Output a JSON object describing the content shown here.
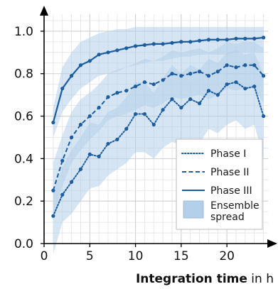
{
  "chart_data": {
    "type": "line",
    "title": "",
    "xlabel": {
      "bold": "Integration time",
      "rest": " in h"
    },
    "ylabel": "",
    "xlim": [
      0,
      24.5
    ],
    "ylim": [
      0,
      1.08
    ],
    "x_ticks": [
      0,
      5,
      10,
      15,
      20
    ],
    "y_ticks": [
      0.0,
      0.2,
      0.4,
      0.6,
      0.8,
      1.0
    ],
    "x_tick_labels": [
      "0",
      "5",
      "10",
      "15",
      "20"
    ],
    "y_tick_labels": [
      "0.0",
      "0.2",
      "0.4",
      "0.6",
      "0.8",
      "1.0"
    ],
    "grid": true,
    "legend_position": "bottom-right",
    "band_color": "#b4cfe9",
    "line_color": "#1b5d9e",
    "x": [
      1,
      2,
      3,
      4,
      5,
      6,
      7,
      8,
      9,
      10,
      11,
      12,
      13,
      14,
      15,
      16,
      17,
      18,
      19,
      20,
      21,
      22,
      23,
      24
    ],
    "series": [
      {
        "name": "Phase I",
        "style": "dotted",
        "values": [
          0.13,
          0.23,
          0.29,
          0.35,
          0.42,
          0.41,
          0.47,
          0.49,
          0.54,
          0.61,
          0.61,
          0.56,
          0.63,
          0.68,
          0.64,
          0.68,
          0.66,
          0.72,
          0.7,
          0.75,
          0.76,
          0.73,
          0.74,
          0.6
        ]
      },
      {
        "name": "Phase II",
        "style": "dashed",
        "values": [
          0.25,
          0.39,
          0.5,
          0.56,
          0.6,
          0.64,
          0.69,
          0.71,
          0.72,
          0.74,
          0.76,
          0.75,
          0.77,
          0.8,
          0.79,
          0.8,
          0.81,
          0.79,
          0.81,
          0.84,
          0.83,
          0.84,
          0.84,
          0.79
        ]
      },
      {
        "name": "Phase III",
        "style": "solid",
        "values": [
          0.57,
          0.73,
          0.79,
          0.84,
          0.86,
          0.89,
          0.9,
          0.91,
          0.92,
          0.93,
          0.935,
          0.94,
          0.94,
          0.945,
          0.95,
          0.95,
          0.955,
          0.96,
          0.96,
          0.96,
          0.965,
          0.965,
          0.965,
          0.97
        ]
      }
    ],
    "bands": [
      {
        "series": "Phase I",
        "lower": [
          -0.05,
          0.1,
          0.14,
          0.2,
          0.26,
          0.27,
          0.32,
          0.35,
          0.38,
          0.43,
          0.43,
          0.4,
          0.45,
          0.48,
          0.46,
          0.49,
          0.47,
          0.54,
          0.52,
          0.56,
          0.58,
          0.54,
          0.56,
          0.4
        ],
        "upper": [
          0.24,
          0.36,
          0.44,
          0.5,
          0.57,
          0.56,
          0.62,
          0.64,
          0.69,
          0.76,
          0.76,
          0.71,
          0.78,
          0.84,
          0.8,
          0.84,
          0.82,
          0.87,
          0.85,
          0.9,
          0.91,
          0.89,
          0.9,
          0.8
        ]
      },
      {
        "series": "Phase II",
        "lower": [
          0.12,
          0.27,
          0.38,
          0.44,
          0.49,
          0.53,
          0.58,
          0.6,
          0.61,
          0.63,
          0.65,
          0.64,
          0.66,
          0.69,
          0.68,
          0.69,
          0.7,
          0.68,
          0.7,
          0.73,
          0.72,
          0.73,
          0.73,
          0.66
        ],
        "upper": [
          0.38,
          0.51,
          0.62,
          0.68,
          0.71,
          0.75,
          0.8,
          0.82,
          0.83,
          0.85,
          0.87,
          0.86,
          0.88,
          0.91,
          0.9,
          0.91,
          0.92,
          0.9,
          0.92,
          0.95,
          0.94,
          0.95,
          0.95,
          0.92
        ]
      },
      {
        "series": "Phase III",
        "lower": [
          0.5,
          0.62,
          0.68,
          0.73,
          0.76,
          0.79,
          0.8,
          0.81,
          0.83,
          0.84,
          0.85,
          0.86,
          0.86,
          0.87,
          0.88,
          0.88,
          0.89,
          0.89,
          0.89,
          0.89,
          0.9,
          0.9,
          0.9,
          0.9
        ],
        "upper": [
          0.64,
          0.83,
          0.9,
          0.95,
          0.97,
          0.99,
          1.0,
          1.01,
          1.01,
          1.02,
          1.02,
          1.02,
          1.02,
          1.02,
          1.02,
          1.02,
          1.02,
          1.02,
          1.02,
          1.02,
          1.02,
          1.02,
          1.02,
          1.02
        ]
      }
    ],
    "legend": {
      "entries": [
        {
          "label": "Phase I",
          "kind": "line",
          "style": "dotted"
        },
        {
          "label": "Phase II",
          "kind": "line",
          "style": "dashed"
        },
        {
          "label": "Phase III",
          "kind": "line",
          "style": "solid"
        },
        {
          "label": "Ensemble spread",
          "kind": "band",
          "lines": [
            "Ensemble",
            "spread"
          ]
        }
      ]
    }
  }
}
